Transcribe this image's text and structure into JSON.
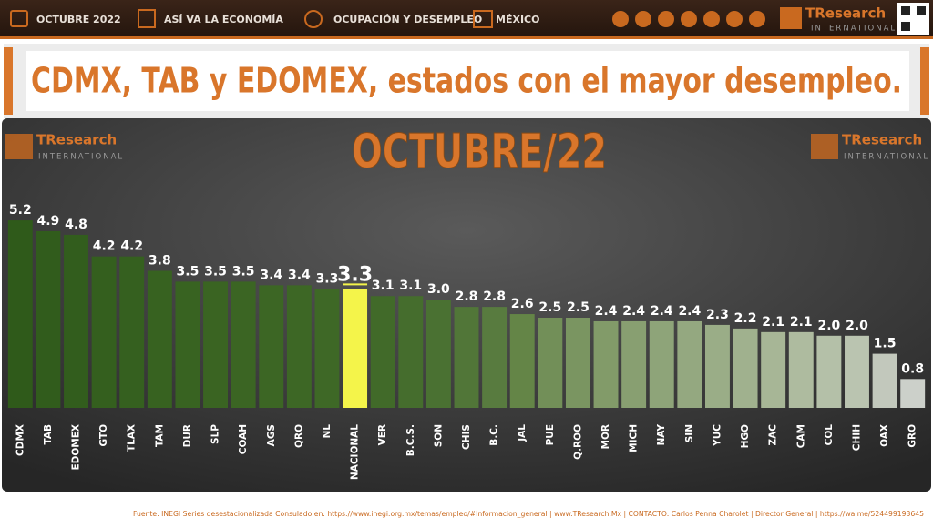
{
  "header": {
    "items": [
      "OCTUBRE 2022",
      "ASÍ VA LA ECONOMÍA",
      "OCUPACIÓN Y DESEMPLEO",
      "MÉXICO"
    ],
    "logo": {
      "brand": "TResearch",
      "sub": "INTERNATIONAL"
    }
  },
  "banner_title": "CDMX, TAB y EDOMEX, estados con el mayor desempleo.",
  "chart_data": {
    "type": "bar",
    "title": "OCTUBRE/22",
    "categories": [
      "CDMX",
      "TAB",
      "EDOMEX",
      "GTO",
      "TLAX",
      "TAM",
      "DUR",
      "SLP",
      "COAH",
      "AGS",
      "QRO",
      "NL",
      "NACIONAL",
      "VER",
      "B.C.S.",
      "SON",
      "CHIS",
      "B.C.",
      "JAL",
      "PUE",
      "Q.ROO",
      "MOR",
      "MICH",
      "NAY",
      "SIN",
      "YUC",
      "HGO",
      "ZAC",
      "CAM",
      "COL",
      "CHIH",
      "OAX",
      "GRO"
    ],
    "values": [
      5.2,
      4.9,
      4.8,
      4.2,
      4.2,
      3.8,
      3.5,
      3.5,
      3.5,
      3.4,
      3.4,
      3.3,
      3.3,
      3.1,
      3.1,
      3.0,
      2.8,
      2.8,
      2.6,
      2.5,
      2.5,
      2.4,
      2.4,
      2.4,
      2.4,
      2.3,
      2.2,
      2.1,
      2.1,
      2.0,
      2.0,
      1.5,
      0.8
    ],
    "value_labels": [
      "5.2",
      "4.9",
      "4.8",
      "4.2",
      "4.2",
      "3.8",
      "3.5",
      "3.5",
      "3.5",
      "3.4",
      "3.4",
      "3.3",
      "3.3",
      "3.1",
      "3.1",
      "3.0",
      "2.8",
      "2.8",
      "2.6",
      "2.5",
      "2.5",
      "2.4",
      "2.4",
      "2.4",
      "2.4",
      "2.3",
      "2.2",
      "2.1",
      "2.1",
      "2.0",
      "2.0",
      "1.5",
      "0.8"
    ],
    "colors": [
      "#2f5a1a",
      "#315c1c",
      "#325d1d",
      "#345f1e",
      "#35601f",
      "#376220",
      "#386321",
      "#3a6422",
      "#3b6523",
      "#3c6624",
      "#3d6725",
      "#3e6826",
      "#f4f44a",
      "#416a29",
      "#456d2d",
      "#4a7132",
      "#517638",
      "#587b3f",
      "#648547",
      "#728f58",
      "#7a9561",
      "#829b69",
      "#889f71",
      "#8ea479",
      "#94a880",
      "#9aad87",
      "#a0b18e",
      "#a7b696",
      "#aebb9f",
      "#b4c0a8",
      "#bac4b0",
      "#c2c8bc",
      "#ccd0ca"
    ],
    "highlight_label_color": "#f4f44a"
  },
  "footer": {
    "source": "Fuente: INEGI Series desestacionalizada Consulado en: https://www.inegi.org.mx/temas/empleo/#Informacion_general | www.TResearch.Mx | CONTACTO: Carlos Penna Charolet | Director General | https://wa.me/524499193645"
  }
}
